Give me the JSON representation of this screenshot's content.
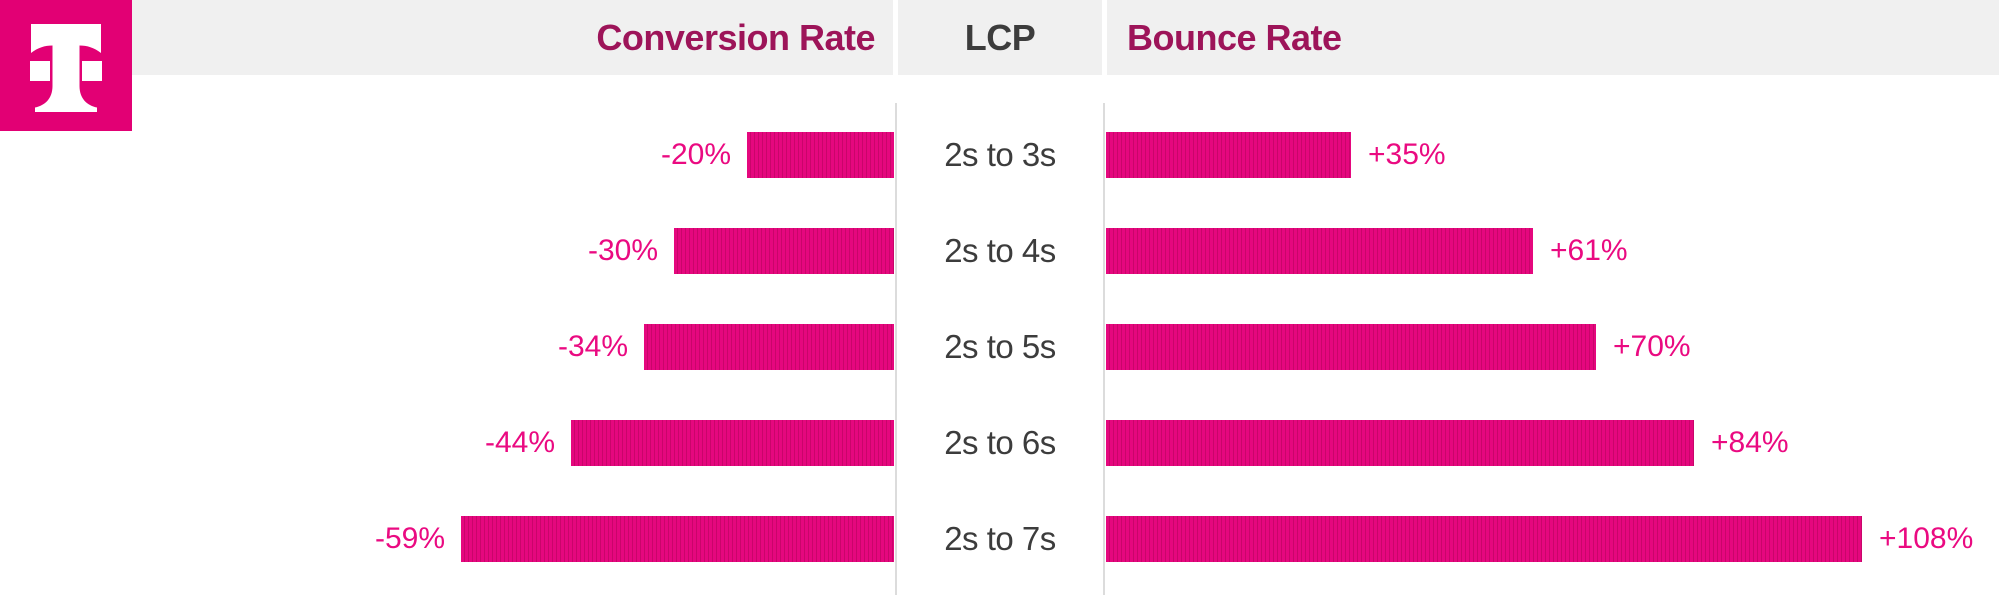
{
  "header": {
    "left_title": "Conversion Rate",
    "center_title": "LCP",
    "right_title": "Bounce Rate"
  },
  "logo": {
    "icon": "t-mobile-telekom-t-logo"
  },
  "colors": {
    "magenta": "#e20074",
    "bar_fill": "#e5077e",
    "bar_stripe": "#c9056a",
    "value_label": "#ea0a81",
    "header_berry": "#9d1459",
    "header_band": "#f0f0f0",
    "dark_text": "#3c3c3c",
    "axis_line": "#dcdcdc",
    "white": "#ffffff"
  },
  "chart_data": {
    "type": "bar",
    "orientation": "horizontal",
    "layout": "diverging-from-center",
    "center_axis_label": "LCP",
    "categories": [
      "2s to 3s",
      "2s to 4s",
      "2s to 5s",
      "2s to 6s",
      "2s to 7s"
    ],
    "series": [
      {
        "name": "Conversion Rate",
        "side": "left",
        "unit": "%",
        "values": [
          -20,
          -30,
          -34,
          -44,
          -59
        ],
        "labels": [
          "-20%",
          "-30%",
          "-34%",
          "-44%",
          "-59%"
        ]
      },
      {
        "name": "Bounce Rate",
        "side": "right",
        "unit": "%",
        "values": [
          35,
          61,
          70,
          84,
          108
        ],
        "labels": [
          "+35%",
          "+61%",
          "+70%",
          "+84%",
          "+108%"
        ]
      }
    ],
    "legend_position": "top-header-row",
    "grid": false
  }
}
